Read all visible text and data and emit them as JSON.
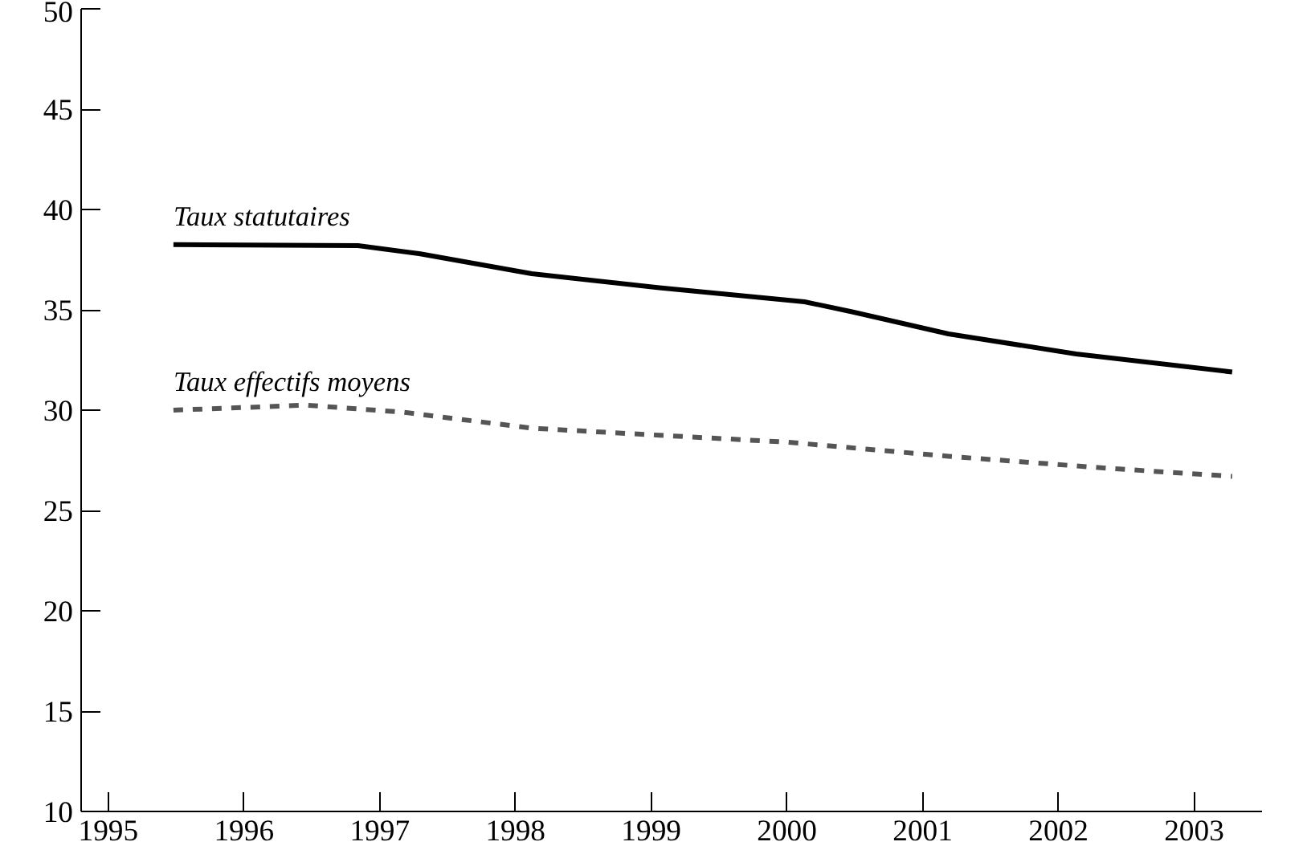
{
  "chart_data": {
    "type": "line",
    "x": [
      1995.48,
      1996.84,
      1997.29,
      1998.12,
      1999.06,
      2000.13,
      2000.48,
      2001.19,
      2002.13,
      2003.28
    ],
    "series": [
      {
        "name": "Taux statutaires",
        "color": "#000000",
        "line_style": "solid",
        "values": [
          38.25,
          38.2,
          37.8,
          36.8,
          36.1,
          35.4,
          34.9,
          33.8,
          32.8,
          31.9
        ]
      },
      {
        "name": "Taux effectifs moyens",
        "color": "#555555",
        "line_style": "dashed",
        "x": [
          1995.48,
          1996.46,
          1997.17,
          1998.12,
          1999.06,
          2000.01,
          2001.19,
          2002.37,
          2003.28
        ],
        "values": [
          30.0,
          30.25,
          29.9,
          29.1,
          28.75,
          28.4,
          27.7,
          27.1,
          26.7
        ]
      }
    ],
    "xlim": [
      1994.8,
      2003.5
    ],
    "xticks": [
      1995,
      1996,
      1997,
      1998,
      1999,
      2000,
      2001,
      2002,
      2003
    ],
    "ylim": [
      10,
      50
    ],
    "yticks": [
      10,
      15,
      20,
      25,
      30,
      35,
      40,
      45,
      50
    ],
    "grid": false,
    "legend": false,
    "marker": "none"
  }
}
